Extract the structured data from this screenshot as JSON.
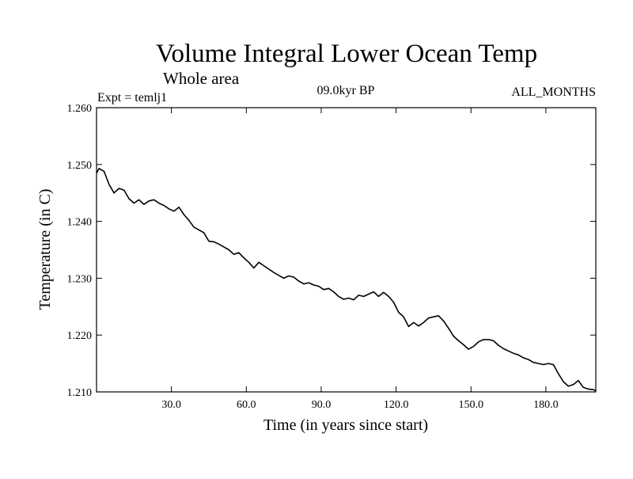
{
  "chart_data": {
    "type": "line",
    "title": "Volume Integral Lower Ocean Temp",
    "subtitle": "Whole area",
    "experiment": "Expt = temlj1",
    "period": "09.0kyr BP",
    "months": "ALL_MONTHS",
    "xlabel": "Time (in years since start)",
    "ylabel": "Temperature (in C)",
    "xlim": [
      0,
      200
    ],
    "ylim": [
      1.21,
      1.26
    ],
    "x_ticks": [
      30,
      60,
      90,
      120,
      150,
      180
    ],
    "x_tick_labels": [
      "30.0",
      "60.0",
      "90.0",
      "120.0",
      "150.0",
      "180.0"
    ],
    "y_ticks": [
      1.21,
      1.22,
      1.23,
      1.24,
      1.25,
      1.26
    ],
    "y_tick_labels": [
      "1.210",
      "1.220",
      "1.230",
      "1.240",
      "1.250",
      "1.260"
    ],
    "series": [
      {
        "name": "temlj1",
        "x": [
          0,
          1,
          3,
          5,
          7,
          9,
          11,
          13,
          15,
          17,
          19,
          21,
          23,
          25,
          27,
          29,
          31,
          33,
          35,
          37,
          39,
          41,
          43,
          45,
          47,
          49,
          51,
          53,
          55,
          57,
          59,
          61,
          63,
          65,
          67,
          69,
          71,
          73,
          75,
          77,
          79,
          81,
          83,
          85,
          87,
          89,
          91,
          93,
          95,
          97,
          99,
          101,
          103,
          105,
          107,
          109,
          111,
          113,
          115,
          117,
          119,
          121,
          123,
          125,
          127,
          129,
          131,
          133,
          135,
          137,
          139,
          141,
          143,
          145,
          147,
          149,
          151,
          153,
          155,
          157,
          159,
          161,
          163,
          165,
          167,
          169,
          171,
          173,
          175,
          177,
          179,
          181,
          183,
          185,
          187,
          189,
          191,
          193,
          195,
          197,
          199,
          200
        ],
        "values": [
          1.2485,
          1.2493,
          1.2488,
          1.2465,
          1.245,
          1.2458,
          1.2455,
          1.244,
          1.2432,
          1.2438,
          1.243,
          1.2436,
          1.2438,
          1.2432,
          1.2428,
          1.2422,
          1.2418,
          1.2425,
          1.2412,
          1.2402,
          1.239,
          1.2385,
          1.238,
          1.2365,
          1.2364,
          1.236,
          1.2355,
          1.235,
          1.2342,
          1.2345,
          1.2336,
          1.2328,
          1.2318,
          1.2328,
          1.2322,
          1.2316,
          1.231,
          1.2305,
          1.23,
          1.2304,
          1.2302,
          1.2295,
          1.229,
          1.2292,
          1.2288,
          1.2286,
          1.228,
          1.2282,
          1.2276,
          1.2268,
          1.2263,
          1.2265,
          1.2262,
          1.227,
          1.2268,
          1.2272,
          1.2276,
          1.2268,
          1.2275,
          1.2268,
          1.2258,
          1.224,
          1.2232,
          1.2215,
          1.2222,
          1.2216,
          1.2222,
          1.223,
          1.2232,
          1.2234,
          1.2225,
          1.2212,
          1.2198,
          1.219,
          1.2183,
          1.2175,
          1.218,
          1.2188,
          1.2192,
          1.2192,
          1.219,
          1.2182,
          1.2176,
          1.2172,
          1.2168,
          1.2165,
          1.216,
          1.2157,
          1.2152,
          1.215,
          1.2148,
          1.215,
          1.2148,
          1.2132,
          1.2118,
          1.211,
          1.2113,
          1.212,
          1.2108,
          1.2105,
          1.2104,
          1.2102
        ]
      }
    ]
  }
}
